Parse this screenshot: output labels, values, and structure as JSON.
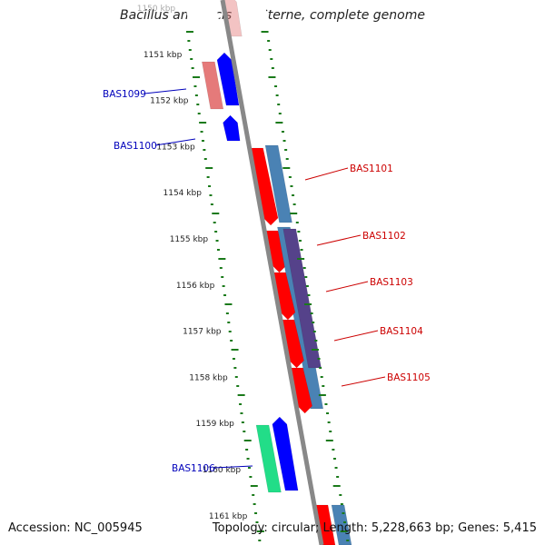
{
  "title": "Bacillus anthracis str. Sterne, complete genome",
  "footer": {
    "accession": "Accession: NC_005945",
    "topology": "Topology: circular; Length: 5,228,663 bp; Genes: 5,415"
  },
  "ruler": {
    "labels": [
      "1150 kbp",
      "1151 kbp",
      "1152 kbp",
      "1153 kbp",
      "1154 kbp",
      "1155 kbp",
      "1156 kbp",
      "1157 kbp",
      "1158 kbp",
      "1159 kbp",
      "1160 kbp",
      "1161 kbp"
    ]
  },
  "gene_labels": [
    {
      "id": "BAS1099",
      "color": "#0000bb"
    },
    {
      "id": "BAS1100",
      "color": "#0000bb"
    },
    {
      "id": "BAS1101",
      "color": "#cc0000"
    },
    {
      "id": "BAS1102",
      "color": "#cc0000"
    },
    {
      "id": "BAS1103",
      "color": "#cc0000"
    },
    {
      "id": "BAS1104",
      "color": "#cc0000"
    },
    {
      "id": "BAS1105",
      "color": "#cc0000"
    },
    {
      "id": "BAS1106",
      "color": "#0000bb"
    }
  ],
  "colors": {
    "backbone": "#888888",
    "tick": "#1a7a1a",
    "forward_cds": "#ff0000",
    "forward_feature": "#4a82b4",
    "reverse_cds": "#0000ff",
    "reverse_feature": "#e57a7a",
    "rna": "#22dd88",
    "overlap": "#55428a"
  }
}
